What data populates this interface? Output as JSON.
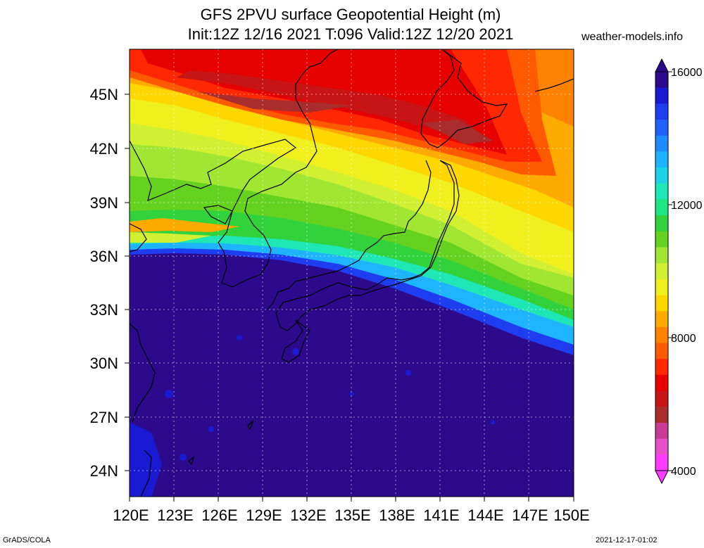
{
  "header": {
    "title_line1": "GFS 2PVU surface Geopotential Height (m)",
    "title_line2": "Init:12Z 12/16 2021 T:096 Valid:12Z 12/20 2021",
    "site": "weather-models.info"
  },
  "footer": {
    "left": "GrADS/COLA",
    "right": "2021-12-17-01:02"
  },
  "map": {
    "lat_labels": [
      "45N",
      "42N",
      "39N",
      "36N",
      "33N",
      "30N",
      "27N",
      "24N"
    ],
    "lon_labels": [
      "120E",
      "123E",
      "126E",
      "129E",
      "132E",
      "135E",
      "138E",
      "141E",
      "144E",
      "147E",
      "150E"
    ],
    "lon_range": [
      120,
      150
    ],
    "lat_range": [
      22.5,
      47.5
    ],
    "grid": true
  },
  "colorbar": {
    "labels": [
      "16000",
      "12000",
      "8000",
      "4000"
    ],
    "colors": [
      "#2b0a8c",
      "#1a1ad2",
      "#1e3cf0",
      "#2060ff",
      "#1e8cff",
      "#1eb4ff",
      "#1ed2e6",
      "#1ee6b4",
      "#1ee682",
      "#32d23c",
      "#64d21e",
      "#a0e632",
      "#d2f032",
      "#f0f01e",
      "#ffd700",
      "#ffaa00",
      "#ff8200",
      "#ff5a00",
      "#ff2800",
      "#e60000",
      "#c81414",
      "#aa2d2d",
      "#c83c96",
      "#e650c8",
      "#ff3cff"
    ]
  }
}
